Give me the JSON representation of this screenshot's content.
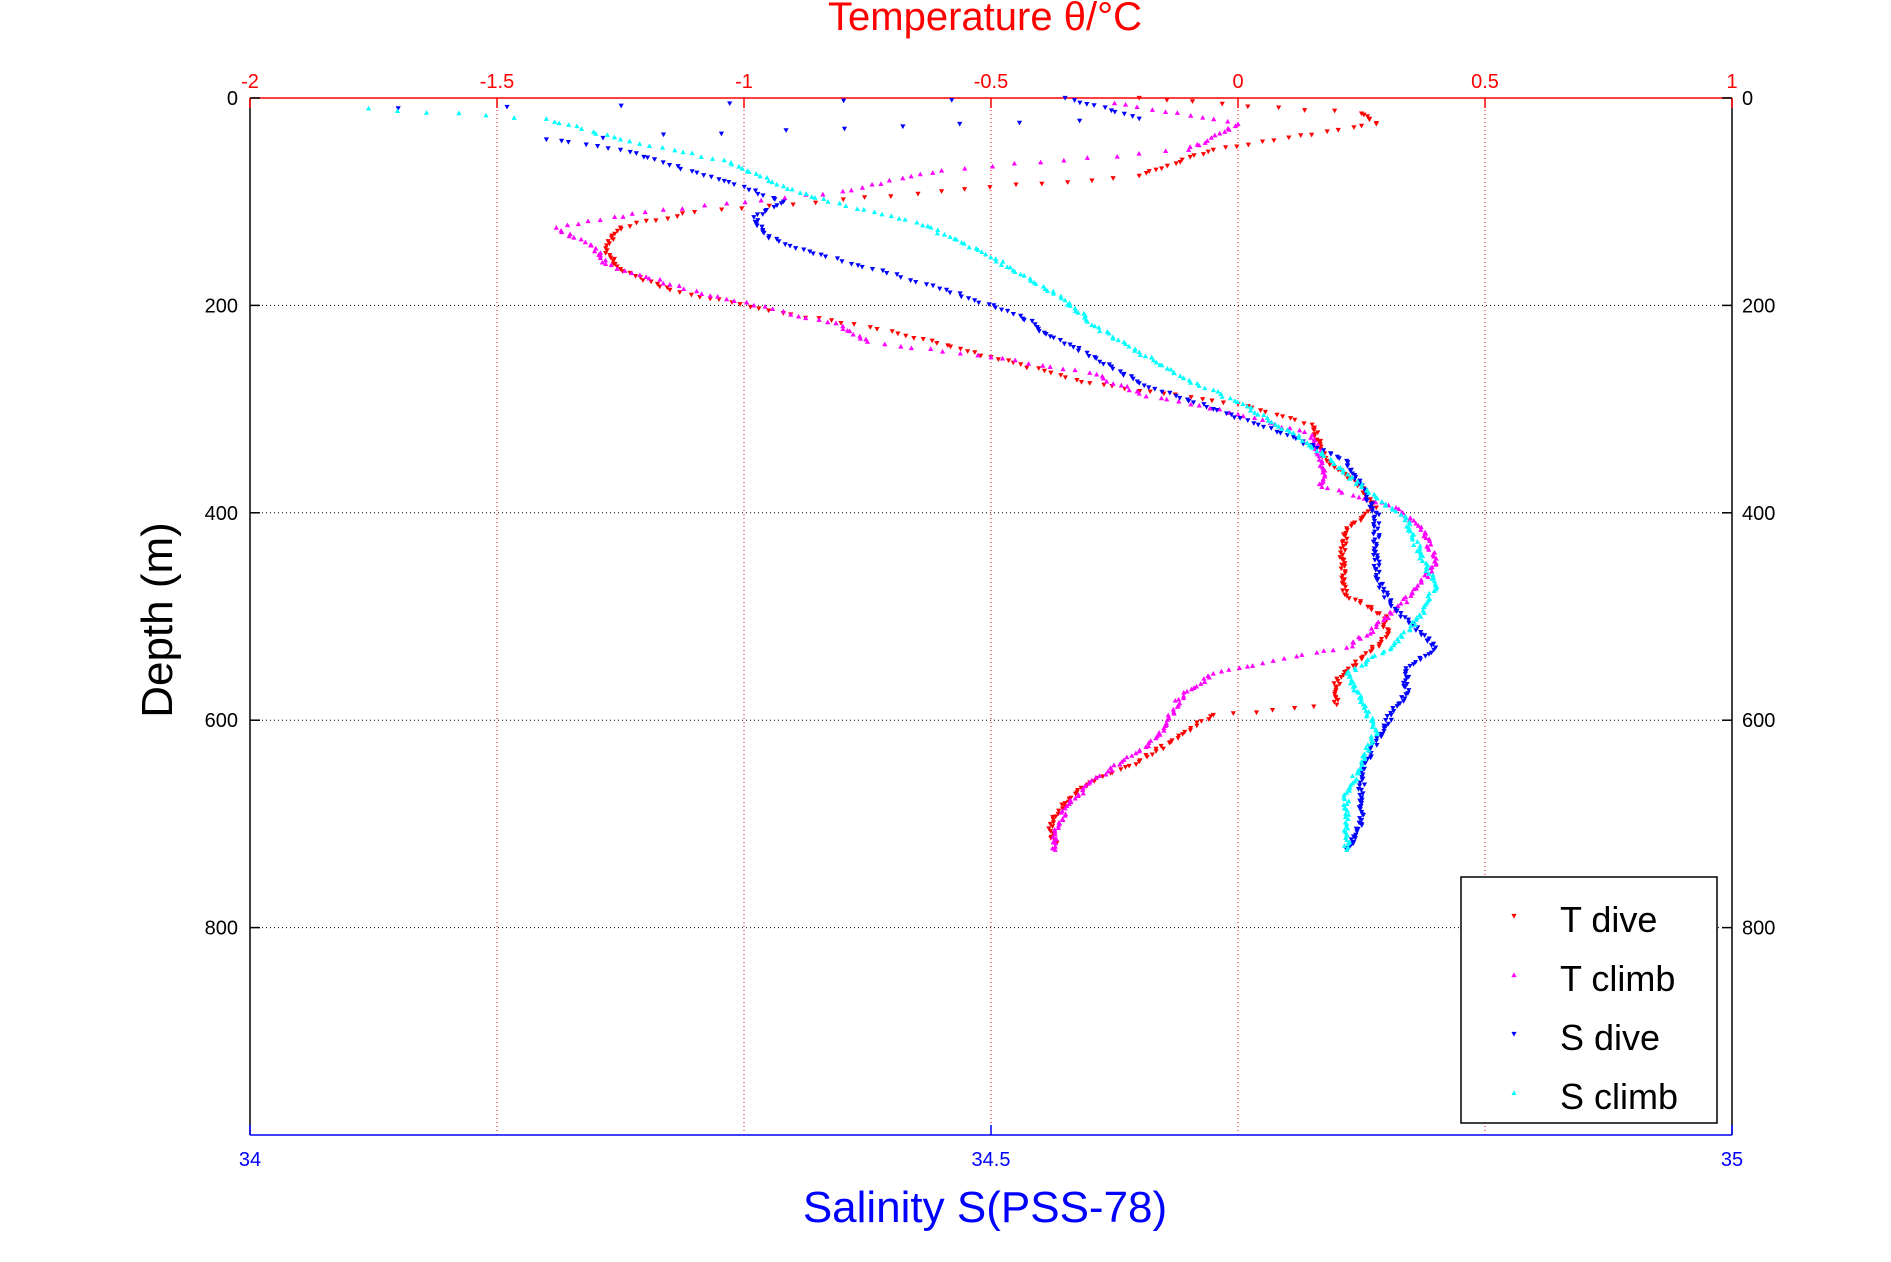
{
  "chart_data": {
    "type": "scatter",
    "title": "",
    "top_axis": {
      "label": "Temperature θ/°C",
      "range": [
        -2,
        1
      ],
      "ticks": [
        -2,
        -1.5,
        -1,
        -0.5,
        0,
        0.5,
        1
      ],
      "tick_labels": [
        "-2",
        "-1.5",
        "-1",
        "-0.5",
        "0",
        "0.5",
        "1"
      ],
      "color": "#ff0000"
    },
    "bottom_axis": {
      "label": "Salinity S(PSS-78)",
      "range": [
        34,
        35
      ],
      "ticks": [
        34,
        34.5,
        35
      ],
      "tick_labels": [
        "34",
        "34.5",
        "35"
      ],
      "color": "#0000ff"
    },
    "y_axis": {
      "label": "Depth (m)",
      "range": [
        0,
        1000
      ],
      "reversed": true,
      "ticks": [
        0,
        200,
        400,
        600,
        800
      ],
      "tick_labels": [
        "0",
        "200",
        "400",
        "600",
        "800"
      ]
    },
    "grid": true,
    "legend": {
      "placement": "bottom-right",
      "entries": [
        "T dive",
        "T climb",
        "S dive",
        "S climb"
      ]
    },
    "series": [
      {
        "name": "T dive",
        "axis": "top",
        "color": "#ff0000",
        "marker": "triangle-down",
        "points": [
          [
            -0.2,
            0
          ],
          [
            0.25,
            15
          ],
          [
            0.28,
            25
          ],
          [
            -0.05,
            50
          ],
          [
            -0.2,
            75
          ],
          [
            -0.6,
            90
          ],
          [
            -1.1,
            110
          ],
          [
            -1.25,
            125
          ],
          [
            -1.28,
            145
          ],
          [
            -1.25,
            165
          ],
          [
            -1.15,
            185
          ],
          [
            -0.95,
            205
          ],
          [
            -0.7,
            225
          ],
          [
            -0.5,
            250
          ],
          [
            -0.3,
            275
          ],
          [
            -0.15,
            285
          ],
          [
            0,
            295
          ],
          [
            0.15,
            315
          ],
          [
            0.18,
            350
          ],
          [
            0.25,
            375
          ],
          [
            0.28,
            395
          ],
          [
            0.22,
            415
          ],
          [
            0.21,
            450
          ],
          [
            0.22,
            480
          ],
          [
            0.3,
            500
          ],
          [
            0.3,
            520
          ],
          [
            0.25,
            540
          ],
          [
            0.2,
            560
          ],
          [
            0.2,
            585
          ],
          [
            -0.05,
            595
          ],
          [
            -0.12,
            615
          ],
          [
            -0.2,
            640
          ],
          [
            -0.3,
            660
          ],
          [
            -0.35,
            680
          ],
          [
            -0.38,
            700
          ],
          [
            -0.37,
            720
          ]
        ]
      },
      {
        "name": "T climb",
        "axis": "top",
        "color": "#ff00ff",
        "marker": "triangle-up",
        "points": [
          [
            -0.25,
            5
          ],
          [
            0,
            25
          ],
          [
            -0.1,
            50
          ],
          [
            -0.6,
            70
          ],
          [
            -0.8,
            90
          ],
          [
            -1.2,
            110
          ],
          [
            -1.38,
            125
          ],
          [
            -1.3,
            145
          ],
          [
            -1.28,
            160
          ],
          [
            -1.15,
            180
          ],
          [
            -0.98,
            200
          ],
          [
            -0.8,
            220
          ],
          [
            -0.75,
            235
          ],
          [
            -0.5,
            250
          ],
          [
            -0.3,
            265
          ],
          [
            -0.2,
            285
          ],
          [
            0,
            305
          ],
          [
            0.15,
            325
          ],
          [
            0.17,
            350
          ],
          [
            0.17,
            375
          ],
          [
            0.32,
            395
          ],
          [
            0.38,
            420
          ],
          [
            0.4,
            450
          ],
          [
            0.35,
            480
          ],
          [
            0.28,
            510
          ],
          [
            0.22,
            530
          ],
          [
            0.05,
            545
          ],
          [
            -0.05,
            555
          ],
          [
            -0.12,
            580
          ],
          [
            -0.15,
            610
          ],
          [
            -0.2,
            630
          ],
          [
            -0.3,
            660
          ],
          [
            -0.35,
            685
          ],
          [
            -0.37,
            710
          ],
          [
            -0.37,
            725
          ]
        ]
      },
      {
        "name": "S dive",
        "axis": "bottom",
        "color": "#0000ff",
        "marker": "triangle-down",
        "points": [
          [
            34.1,
            10
          ],
          [
            34.55,
            0
          ],
          [
            34.6,
            20
          ],
          [
            34.2,
            40
          ],
          [
            34.25,
            50
          ],
          [
            34.32,
            80
          ],
          [
            34.36,
            100
          ],
          [
            34.34,
            115
          ],
          [
            34.35,
            135
          ],
          [
            34.38,
            150
          ],
          [
            34.42,
            165
          ],
          [
            34.47,
            185
          ],
          [
            34.52,
            210
          ],
          [
            34.54,
            230
          ],
          [
            34.57,
            250
          ],
          [
            34.6,
            275
          ],
          [
            34.65,
            300
          ],
          [
            34.7,
            325
          ],
          [
            34.74,
            350
          ],
          [
            34.75,
            375
          ],
          [
            34.76,
            400
          ],
          [
            34.76,
            430
          ],
          [
            34.76,
            460
          ],
          [
            34.77,
            490
          ],
          [
            34.79,
            515
          ],
          [
            34.8,
            530
          ],
          [
            34.78,
            550
          ],
          [
            34.78,
            575
          ],
          [
            34.77,
            595
          ],
          [
            34.76,
            620
          ],
          [
            34.75,
            650
          ],
          [
            34.75,
            680
          ],
          [
            34.75,
            700
          ],
          [
            34.74,
            725
          ]
        ]
      },
      {
        "name": "S climb",
        "axis": "bottom",
        "color": "#00ffff",
        "marker": "triangle-up",
        "points": [
          [
            34.08,
            10
          ],
          [
            34.2,
            20
          ],
          [
            34.25,
            40
          ],
          [
            34.32,
            60
          ],
          [
            34.36,
            85
          ],
          [
            34.39,
            100
          ],
          [
            34.45,
            120
          ],
          [
            34.49,
            145
          ],
          [
            34.52,
            170
          ],
          [
            34.55,
            195
          ],
          [
            34.57,
            220
          ],
          [
            34.6,
            245
          ],
          [
            34.63,
            270
          ],
          [
            34.67,
            295
          ],
          [
            34.7,
            320
          ],
          [
            34.73,
            350
          ],
          [
            34.75,
            375
          ],
          [
            34.78,
            405
          ],
          [
            34.79,
            440
          ],
          [
            34.8,
            470
          ],
          [
            34.79,
            500
          ],
          [
            34.77,
            530
          ],
          [
            34.74,
            555
          ],
          [
            34.75,
            580
          ],
          [
            34.76,
            610
          ],
          [
            34.75,
            640
          ],
          [
            34.74,
            670
          ],
          [
            34.74,
            700
          ],
          [
            34.74,
            725
          ]
        ]
      }
    ]
  }
}
